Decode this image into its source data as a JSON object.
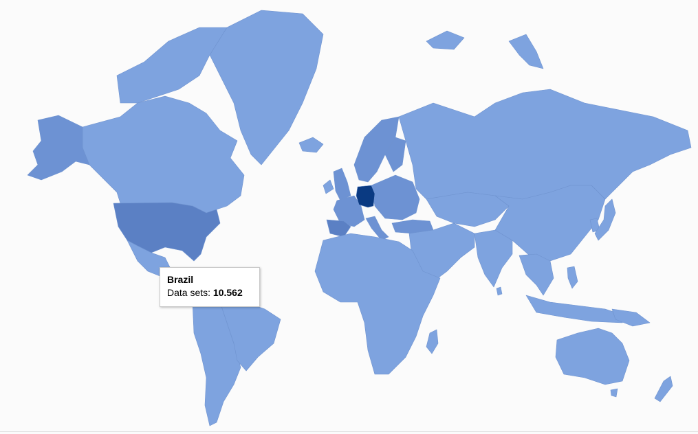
{
  "colors": {
    "background": "#fbfbfb",
    "level_1": "#7ea3df",
    "level_2": "#6d92d3",
    "level_3": "#5b80c4",
    "highlight": "#0a3a82",
    "border": "#6f93cf"
  },
  "tooltip": {
    "country": "Brazil",
    "label": "Data sets:",
    "value": "10.562"
  },
  "map_regions": [
    {
      "name": "canada",
      "level": 1
    },
    {
      "name": "alaska",
      "level": 2
    },
    {
      "name": "usa",
      "level": 3
    },
    {
      "name": "mexico",
      "level": 1
    },
    {
      "name": "central-america",
      "level": 1
    },
    {
      "name": "greenland",
      "level": 1
    },
    {
      "name": "arctic-islands",
      "level": 1
    },
    {
      "name": "iceland",
      "level": 1
    },
    {
      "name": "south-america",
      "level": 1
    },
    {
      "name": "brazil",
      "level": 1
    },
    {
      "name": "uk",
      "level": 2
    },
    {
      "name": "ireland",
      "level": 1
    },
    {
      "name": "scandinavia",
      "level": 2
    },
    {
      "name": "finland",
      "level": 2
    },
    {
      "name": "western-europe",
      "level": 2
    },
    {
      "name": "iberia",
      "level": 3
    },
    {
      "name": "italy",
      "level": 2
    },
    {
      "name": "eastern-europe",
      "level": 2
    },
    {
      "name": "germany",
      "level": 4
    },
    {
      "name": "russia",
      "level": 1
    },
    {
      "name": "kazakhstan-central-asia",
      "level": 1
    },
    {
      "name": "middle-east",
      "level": 1
    },
    {
      "name": "turkey",
      "level": 2
    },
    {
      "name": "africa",
      "level": 1
    },
    {
      "name": "madagascar",
      "level": 1
    },
    {
      "name": "india",
      "level": 1
    },
    {
      "name": "china-mongolia",
      "level": 1
    },
    {
      "name": "southeast-asia",
      "level": 1
    },
    {
      "name": "japan",
      "level": 1
    },
    {
      "name": "korea",
      "level": 1
    },
    {
      "name": "indonesia",
      "level": 1
    },
    {
      "name": "philippines",
      "level": 1
    },
    {
      "name": "australia",
      "level": 1
    },
    {
      "name": "new-zealand",
      "level": 1
    },
    {
      "name": "svalbard",
      "level": 1
    },
    {
      "name": "novaya-zemlya",
      "level": 1
    },
    {
      "name": "sri-lanka",
      "level": 1
    },
    {
      "name": "papua",
      "level": 1
    },
    {
      "name": "tasmania",
      "level": 1
    }
  ]
}
